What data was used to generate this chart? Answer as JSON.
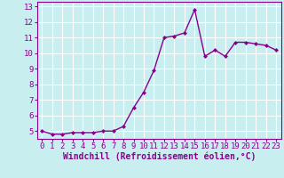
{
  "x": [
    0,
    1,
    2,
    3,
    4,
    5,
    6,
    7,
    8,
    9,
    10,
    11,
    12,
    13,
    14,
    15,
    16,
    17,
    18,
    19,
    20,
    21,
    22,
    23
  ],
  "y": [
    5.0,
    4.8,
    4.8,
    4.9,
    4.9,
    4.9,
    5.0,
    5.0,
    5.3,
    6.5,
    7.5,
    8.9,
    11.0,
    11.1,
    11.3,
    12.8,
    9.8,
    10.2,
    9.8,
    10.7,
    10.7,
    10.6,
    10.5,
    10.2
  ],
  "line_color": "#8B008B",
  "marker": "D",
  "marker_size": 2,
  "bg_color": "#c8eef0",
  "grid_color": "#ffffff",
  "xlabel": "Windchill (Refroidissement éolien,°C)",
  "xlabel_color": "#8B008B",
  "xlabel_fontsize": 7,
  "yticks": [
    5,
    6,
    7,
    8,
    9,
    10,
    11,
    12,
    13
  ],
  "xticks": [
    0,
    1,
    2,
    3,
    4,
    5,
    6,
    7,
    8,
    9,
    10,
    11,
    12,
    13,
    14,
    15,
    16,
    17,
    18,
    19,
    20,
    21,
    22,
    23
  ],
  "ylim": [
    4.5,
    13.3
  ],
  "xlim": [
    -0.5,
    23.5
  ],
  "tick_color": "#8B008B",
  "tick_fontsize": 6.5,
  "spine_color": "#8B008B",
  "linewidth": 1.0
}
